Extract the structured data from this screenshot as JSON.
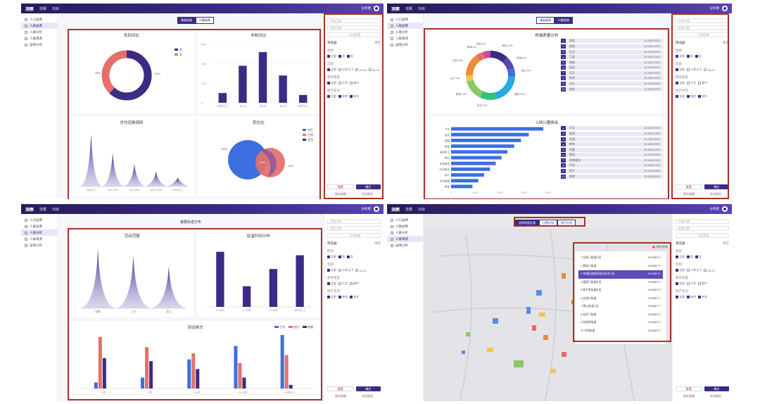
{
  "header": {
    "logo": "洞察",
    "nav": [
      "流量",
      "项目"
    ],
    "user": "分析者"
  },
  "sidebar": {
    "items": [
      "人口画像",
      "人群画像",
      "人群分析",
      "人群来源",
      "画像分布"
    ]
  },
  "tabs_q1": [
    "基础画像",
    "兴趣画像"
  ],
  "tabs_q4": [
    "选择地理区域",
    "位置分布",
    "热力分布"
  ],
  "q1": {
    "gender": {
      "title": "性别对比",
      "male_label": "男",
      "female_label": "女",
      "male_pct": "62%",
      "female_pct": "38%"
    },
    "age": {
      "title": "年龄对比",
      "categories": [
        "18岁以下",
        "18-24",
        "25-34",
        "35-44",
        "45岁以上"
      ],
      "values": [
        10,
        38,
        52,
        28,
        8
      ],
      "yticks": [
        "600",
        "400",
        "200",
        "0"
      ]
    },
    "spend": {
      "title": "月均消费调研",
      "categories": [
        "100以下",
        "101-300",
        "301-500",
        "501-1000",
        "1000以上"
      ],
      "values": [
        70,
        45,
        30,
        20,
        12
      ]
    },
    "job": {
      "title": "职位比",
      "legend": [
        "学生",
        "白领",
        "蓝领"
      ],
      "left": "1000",
      "mid": "1200",
      "right": "800"
    }
  },
  "q2": {
    "pie": {
      "title": "终端质量分布",
      "labels": [
        "游戏 12%",
        "阅读 8%",
        "音乐 6%",
        "视频 20%",
        "社交 11%",
        "购物 14%",
        "出行 4%",
        "工具 15%",
        "新闻 5%",
        "其他 5%"
      ]
    },
    "list1": [
      [
        "1",
        "游戏",
        "12,345,678人"
      ],
      [
        "2",
        "视频",
        "12,345,678人"
      ],
      [
        "3",
        "社交",
        "12,345,678人"
      ],
      [
        "4",
        "工具",
        "12,345,678人"
      ],
      [
        "5",
        "购物",
        "12,345,678人"
      ],
      [
        "6",
        "阅读",
        "12,345,678人"
      ],
      [
        "7",
        "音乐",
        "12,345,678人"
      ],
      [
        "8",
        "新闻",
        "12,345,678人"
      ],
      [
        "9",
        "出行",
        "12,345,678人"
      ],
      [
        "10",
        "其他",
        "12,345,678人"
      ]
    ],
    "bar": {
      "title": "上网兴趣排名",
      "categories": [
        "汽车",
        "旅游",
        "金融",
        "教育",
        "母婴亲子",
        "数码",
        "体育健身",
        "时尚美容",
        "房产",
        "运动健康",
        "美食"
      ],
      "values": [
        95,
        80,
        72,
        65,
        58,
        52,
        46,
        40,
        34,
        28,
        22
      ],
      "xticks": [
        "0",
        "1000",
        "2000",
        "3000",
        "4000"
      ]
    },
    "list2": [
      [
        "1",
        "汽车",
        "12,345,678人"
      ],
      [
        "2",
        "旅游",
        "12,345,678人"
      ],
      [
        "3",
        "金融",
        "12,345,678人"
      ],
      [
        "4",
        "教育",
        "12,345,678人"
      ],
      [
        "5",
        "母婴",
        "12,345,678人"
      ],
      [
        "6",
        "数码",
        "12,345,678人"
      ],
      [
        "7",
        "体育健身",
        "12,345,678人"
      ],
      [
        "8",
        "时尚",
        "12,345,678人"
      ],
      [
        "9",
        "房产",
        "12,345,678人"
      ],
      [
        "10",
        "美食",
        "12,345,678人"
      ]
    ]
  },
  "q3": {
    "title": "客群轨迹分布",
    "range": {
      "title": "活动范围",
      "categories": [
        "商圈",
        "工作",
        "居住"
      ]
    },
    "stay": {
      "title": "驻留时间分布",
      "categories": [
        "0-1小时",
        "1-2小时",
        "2-3小时",
        "3小时以上"
      ],
      "values": [
        80,
        30,
        55,
        75
      ]
    },
    "freq": {
      "title": "到访频次",
      "legend": [
        "工作",
        "居住",
        "商圈"
      ],
      "categories": [
        "1次",
        "2次",
        "3-5次",
        "6-10次",
        "10次以上"
      ],
      "series": [
        [
          10,
          85,
          50
        ],
        [
          18,
          68,
          45
        ],
        [
          48,
          58,
          32
        ],
        [
          70,
          42,
          18
        ],
        [
          88,
          55,
          6
        ]
      ]
    }
  },
  "q4": {
    "legend": "热力分布",
    "places": [
      [
        "1",
        "东直门街道小区",
        "3234567人"
      ],
      [
        "2",
        "朝阳门街道",
        "3234567人"
      ],
      [
        "3",
        "东城区某商场周边住宅小区",
        "3234567人"
      ],
      [
        "4",
        "建国门街道社区",
        "3234567人"
      ],
      [
        "5",
        "和平里街道社区",
        "3234567人"
      ],
      [
        "6",
        "交道口街道",
        "3234567人"
      ],
      [
        "7",
        "景山街道小区",
        "3234567人"
      ],
      [
        "8",
        "安定门街道",
        "3234567人"
      ],
      [
        "9",
        "北新桥街道",
        "3234567人"
      ],
      [
        "10",
        "东四街道",
        "3234567人"
      ]
    ]
  },
  "filter": {
    "date1": "开始日期",
    "date2": "结束日期",
    "btn": "生成画像",
    "section": "筛选器",
    "clear": "清空",
    "age": "性别",
    "gender_opts": [
      "全部",
      "男",
      "女"
    ],
    "age2": "年龄",
    "age_opts": [
      "全部",
      "18岁以下",
      "18-24",
      "25-34",
      "35-44"
    ],
    "edu": "教育程度",
    "edu_opts": [
      "全部",
      "大学",
      "高中"
    ],
    "prop": "财产状况",
    "prop_opts": [
      "全部",
      "有房",
      "有车"
    ],
    "reset": "重置",
    "confirm": "确定",
    "save": "保存画像",
    "export": "导出报告"
  }
}
